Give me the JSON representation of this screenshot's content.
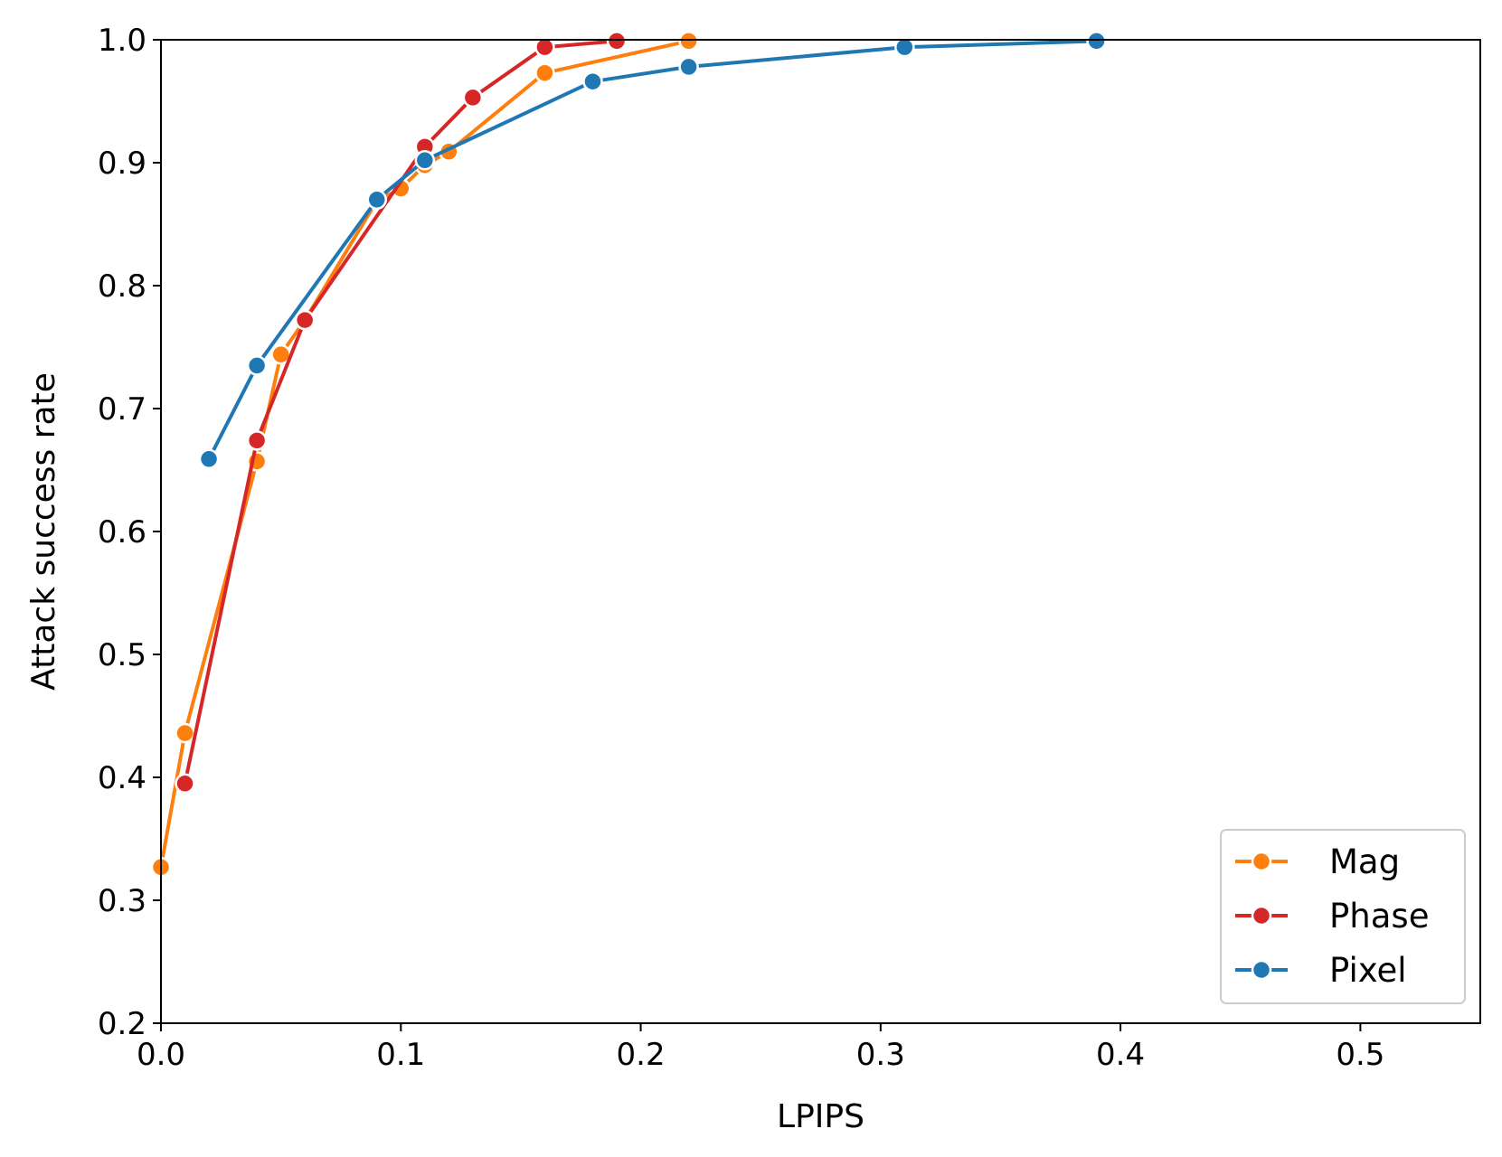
{
  "chart_data": {
    "type": "line",
    "title": "",
    "xlabel": "LPIPS",
    "ylabel": "Attack success rate",
    "xlim": [
      0.0,
      0.55
    ],
    "ylim": [
      0.2,
      1.0
    ],
    "xticks": [
      0.0,
      0.1,
      0.2,
      0.3,
      0.4,
      0.5
    ],
    "xtick_labels": [
      "0.0",
      "0.1",
      "0.2",
      "0.3",
      "0.4",
      "0.5"
    ],
    "yticks": [
      0.2,
      0.3,
      0.4,
      0.5,
      0.6,
      0.7,
      0.8,
      0.9,
      1.0
    ],
    "ytick_labels": [
      "0.2",
      "0.3",
      "0.4",
      "0.5",
      "0.6",
      "0.7",
      "0.8",
      "0.9",
      "1.0"
    ],
    "grid": false,
    "legend_position": "lower-right",
    "marker": "circle",
    "series": [
      {
        "name": "Mag",
        "color": "#ff7f0e",
        "x": [
          0.0,
          0.01,
          0.04,
          0.05,
          0.06,
          0.09,
          0.1,
          0.11,
          0.12,
          0.16,
          0.22
        ],
        "y": [
          0.327,
          0.436,
          0.657,
          0.744,
          0.772,
          0.869,
          0.879,
          0.898,
          0.909,
          0.973,
          0.999
        ]
      },
      {
        "name": "Phase",
        "color": "#d62728",
        "x": [
          0.01,
          0.04,
          0.06,
          0.11,
          0.13,
          0.16,
          0.19
        ],
        "y": [
          0.395,
          0.674,
          0.772,
          0.913,
          0.953,
          0.994,
          0.999
        ]
      },
      {
        "name": "Pixel",
        "color": "#1f77b4",
        "x": [
          0.02,
          0.04,
          0.09,
          0.11,
          0.18,
          0.22,
          0.31,
          0.39
        ],
        "y": [
          0.659,
          0.735,
          0.87,
          0.902,
          0.966,
          0.978,
          0.994,
          0.999
        ]
      }
    ]
  }
}
